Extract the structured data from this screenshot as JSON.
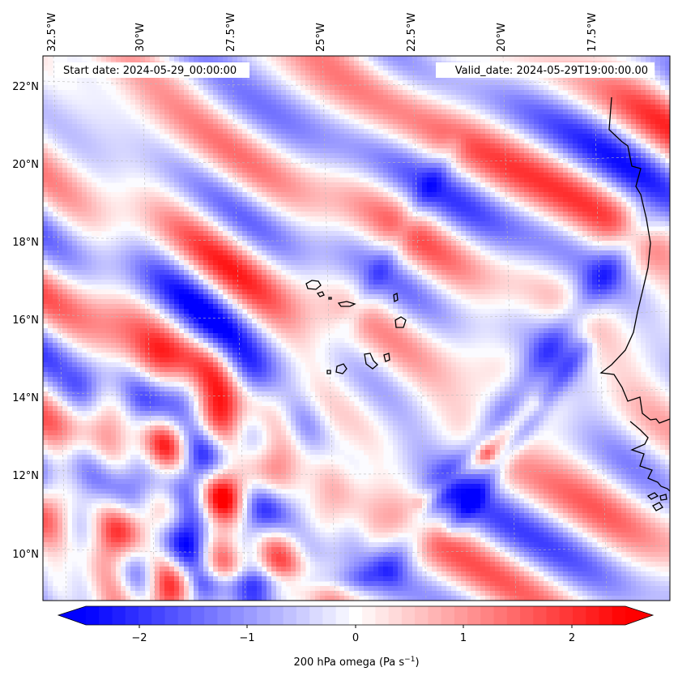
{
  "map": {
    "start_date_label": "Start date: 2024-05-29_00:00:00",
    "valid_date_label": "Valid_date: 2024-05-29T19:00:00.00",
    "lon_labels": [
      "32.5°W",
      "30°W",
      "27.5°W",
      "25°W",
      "22.5°W",
      "20°W",
      "17.5°W"
    ],
    "lat_labels": [
      "22°N",
      "20°N",
      "18°N",
      "16°N",
      "14°N",
      "12°N",
      "10°N"
    ],
    "field": "200 hPa omega",
    "colormap": "bwr",
    "low_color": "#0000ff",
    "mid_color": "#ffffff",
    "high_color": "#ff0000",
    "coastline_color": "#000000",
    "gridline_color": "#bbbbbb"
  },
  "colorbar": {
    "label_prefix": "200 hPa omega (Pa s",
    "label_exponent": "−1",
    "label_suffix": ")",
    "tick_labels": [
      "−2",
      "−1",
      "0",
      "1",
      "2"
    ],
    "range": [
      -2.5,
      2.5
    ],
    "extend": "both",
    "levels": 41
  }
}
